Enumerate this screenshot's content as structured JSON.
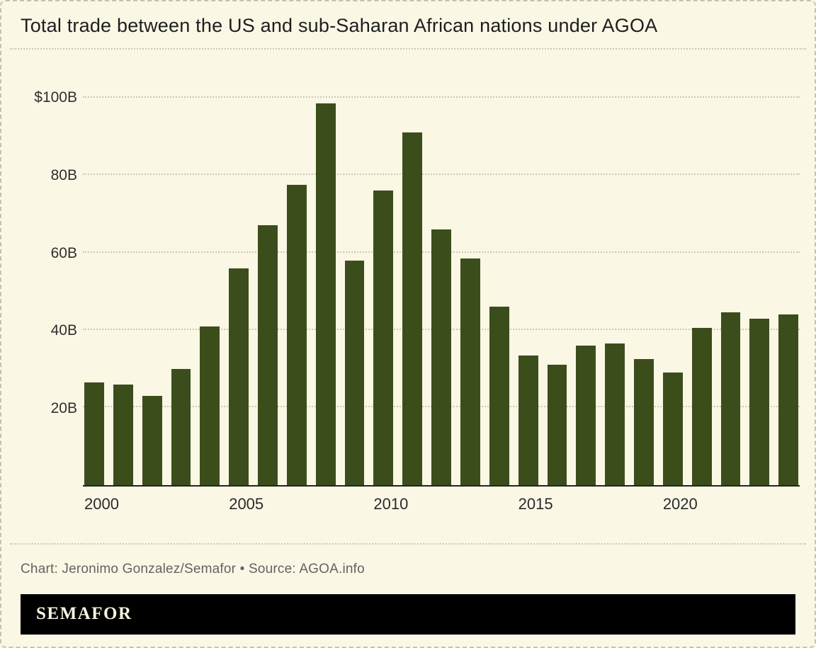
{
  "header": {
    "title": "Total trade between the US and sub-Saharan African nations under AGOA"
  },
  "chart_data": {
    "type": "bar",
    "title": "Total trade between the US and sub-Saharan African nations under AGOA",
    "unit": "USD billions",
    "categories": [
      "2000",
      "2001",
      "2002",
      "2003",
      "2004",
      "2005",
      "2006",
      "2007",
      "2008",
      "2009",
      "2010",
      "2011",
      "2012",
      "2013",
      "2014",
      "2015",
      "2016",
      "2017",
      "2018",
      "2019",
      "2020",
      "2021",
      "2022",
      "2023",
      "2024"
    ],
    "values": [
      26.5,
      26,
      23,
      30,
      41,
      56,
      67,
      77.5,
      98.5,
      58,
      76,
      91,
      66,
      58.5,
      46,
      33.5,
      31,
      36,
      36.5,
      32.5,
      29,
      40.5,
      44.5,
      43,
      44
    ],
    "ylim": [
      0,
      107
    ],
    "yticks": [
      {
        "value": 100,
        "label": "$100B"
      },
      {
        "value": 80,
        "label": "80B"
      },
      {
        "value": 60,
        "label": "60B"
      },
      {
        "value": 40,
        "label": "40B"
      },
      {
        "value": 20,
        "label": "20B"
      }
    ],
    "xticks": [
      {
        "index": 0,
        "label": "2000"
      },
      {
        "index": 5,
        "label": "2005"
      },
      {
        "index": 10,
        "label": "2010"
      },
      {
        "index": 15,
        "label": "2015"
      },
      {
        "index": 20,
        "label": "2020"
      }
    ],
    "grid": "horizontal-dotted",
    "legend": "none",
    "bar_color": "#3c4d1c",
    "background_color": "#faf7e5"
  },
  "footer": {
    "credit": "Chart: Jeronimo Gonzalez/Semafor • Source: AGOA.info"
  },
  "brand": {
    "wordmark": "SEMAFOR"
  }
}
